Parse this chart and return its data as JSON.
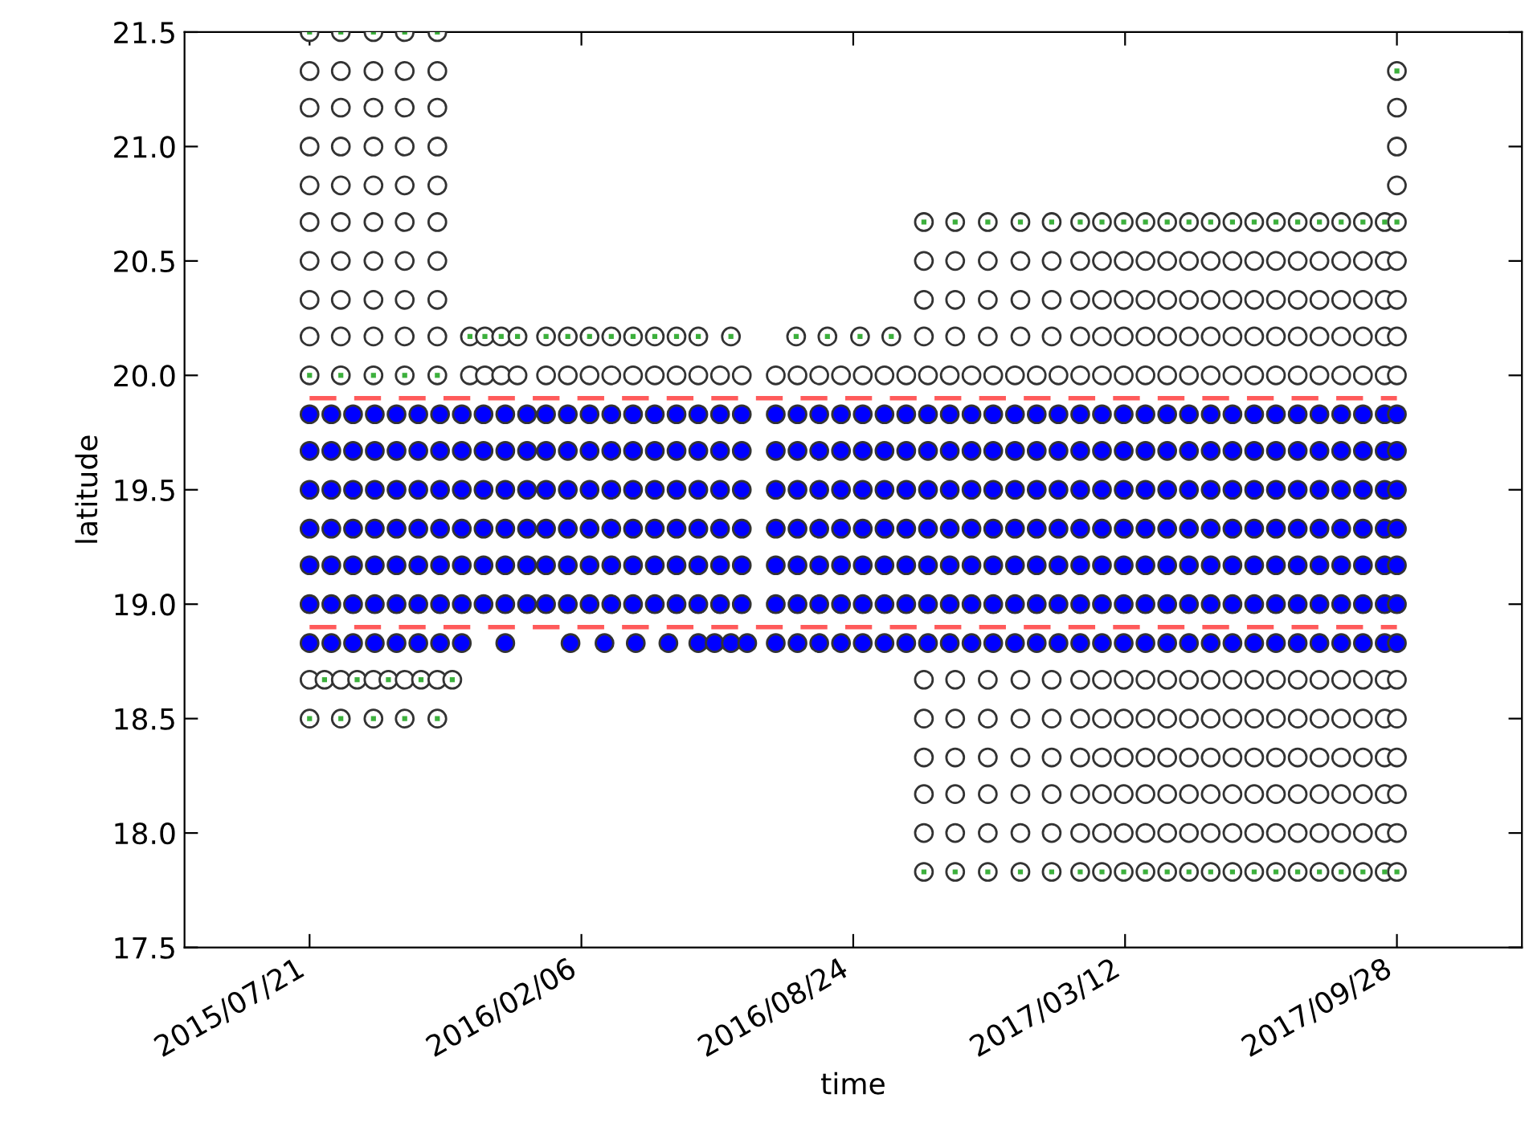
{
  "chart_data": {
    "type": "scatter",
    "xlabel": "time",
    "ylabel": "latitude",
    "xlim": [
      "2015-04-20",
      "2017-12-29"
    ],
    "ylim": [
      17.5,
      21.5
    ],
    "xticks": [
      {
        "value": "2015-07-21",
        "label": "2015/07/21"
      },
      {
        "value": "2016-02-06",
        "label": "2016/02/06"
      },
      {
        "value": "2016-08-24",
        "label": "2016/08/24"
      },
      {
        "value": "2017-03-12",
        "label": "2017/03/12"
      },
      {
        "value": "2017-09-28",
        "label": "2017/09/28"
      }
    ],
    "yticks": [
      17.5,
      {
        "value": 18,
        "label": "18.0"
      },
      18.5,
      {
        "value": 19,
        "label": "19.0"
      },
      19.5,
      {
        "value": 20,
        "label": "20.0"
      },
      20.5,
      {
        "value": 21,
        "label": "21.0"
      },
      21.5
    ],
    "grid": false,
    "line_style": "dashed",
    "series": [
      {
        "color": "#ffffff",
        "marker": "circle",
        "x": [
          "2015-07-21",
          "2015-08-13",
          "2015-09-06",
          "2015-09-29",
          "2015-10-23"
        ],
        "values": [
          21.5,
          21.5,
          21.5,
          21.5,
          21.5
        ]
      },
      {
        "color": "#ffffff",
        "marker": "circle",
        "x": [
          "2015-07-21",
          "2015-08-13",
          "2015-09-06",
          "2015-09-29",
          "2015-10-23",
          "2017-09-28"
        ],
        "values": [
          21.33,
          21.33,
          21.33,
          21.33,
          21.33,
          21.33
        ]
      },
      {
        "color": "#ffffff",
        "marker": "circle",
        "x": [
          "2015-07-21",
          "2015-08-13",
          "2015-09-06",
          "2015-09-29",
          "2015-10-23",
          "2017-09-28"
        ],
        "values": [
          21.17,
          21.17,
          21.17,
          21.17,
          21.17,
          21.17
        ]
      },
      {
        "color": "#ffffff",
        "marker": "circle",
        "x": [
          "2015-07-21",
          "2015-08-13",
          "2015-09-06",
          "2015-09-29",
          "2015-10-23",
          "2017-09-28"
        ],
        "values": [
          21.0,
          21.0,
          21.0,
          21.0,
          21.0,
          21.0
        ]
      },
      {
        "color": "#ffffff",
        "marker": "circle",
        "x": [
          "2015-07-21",
          "2015-08-13",
          "2015-09-06",
          "2015-09-29",
          "2015-10-23",
          "2017-09-28"
        ],
        "values": [
          20.83,
          20.83,
          20.83,
          20.83,
          20.83,
          20.83
        ]
      },
      {
        "color": "#ffffff",
        "marker": "circle",
        "x": [
          "2015-07-21",
          "2015-08-13",
          "2015-09-06",
          "2015-09-29",
          "2015-10-23",
          "2016-10-15",
          "2016-11-07",
          "2016-12-01",
          "2016-12-25",
          "2017-01-17",
          "2017-02-07",
          "2017-02-23",
          "2017-03-11",
          "2017-03-27",
          "2017-04-12",
          "2017-04-28",
          "2017-05-14",
          "2017-05-30",
          "2017-06-15",
          "2017-07-01",
          "2017-07-17",
          "2017-08-02",
          "2017-08-18",
          "2017-09-03",
          "2017-09-19",
          "2017-09-28"
        ],
        "values": [
          20.67,
          20.67,
          20.67,
          20.67,
          20.67,
          20.67,
          20.67,
          20.67,
          20.67,
          20.67,
          20.67,
          20.67,
          20.67,
          20.67,
          20.67,
          20.67,
          20.67,
          20.67,
          20.67,
          20.67,
          20.67,
          20.67,
          20.67,
          20.67,
          20.67,
          20.67
        ]
      },
      {
        "color": "#ffffff",
        "marker": "circle",
        "x": [
          "2015-07-21",
          "2015-08-13",
          "2015-09-06",
          "2015-09-29",
          "2015-10-23",
          "2016-10-15",
          "2016-11-07",
          "2016-12-01",
          "2016-12-25",
          "2017-01-17",
          "2017-02-07",
          "2017-02-23",
          "2017-03-11",
          "2017-03-27",
          "2017-04-12",
          "2017-04-28",
          "2017-05-14",
          "2017-05-30",
          "2017-06-15",
          "2017-07-01",
          "2017-07-17",
          "2017-08-02",
          "2017-08-18",
          "2017-09-03",
          "2017-09-19",
          "2017-09-28"
        ],
        "values": [
          20.5,
          20.5,
          20.5,
          20.5,
          20.5,
          20.5,
          20.5,
          20.5,
          20.5,
          20.5,
          20.5,
          20.5,
          20.5,
          20.5,
          20.5,
          20.5,
          20.5,
          20.5,
          20.5,
          20.5,
          20.5,
          20.5,
          20.5,
          20.5,
          20.5,
          20.5
        ]
      },
      {
        "color": "#ffffff",
        "marker": "circle",
        "x": [
          "2015-07-21",
          "2015-08-13",
          "2015-09-06",
          "2015-09-29",
          "2015-10-23",
          "2016-10-15",
          "2016-11-07",
          "2016-12-01",
          "2016-12-25",
          "2017-01-17",
          "2017-02-07",
          "2017-02-23",
          "2017-03-11",
          "2017-03-27",
          "2017-04-12",
          "2017-04-28",
          "2017-05-14",
          "2017-05-30",
          "2017-06-15",
          "2017-07-01",
          "2017-07-17",
          "2017-08-02",
          "2017-08-18",
          "2017-09-03",
          "2017-09-19",
          "2017-09-28"
        ],
        "values": [
          20.33,
          20.33,
          20.33,
          20.33,
          20.33,
          20.33,
          20.33,
          20.33,
          20.33,
          20.33,
          20.33,
          20.33,
          20.33,
          20.33,
          20.33,
          20.33,
          20.33,
          20.33,
          20.33,
          20.33,
          20.33,
          20.33,
          20.33,
          20.33,
          20.33,
          20.33
        ]
      },
      {
        "color": "#ffffff",
        "marker": "circle",
        "x": [
          "2015-07-21",
          "2015-08-13",
          "2015-09-06",
          "2015-09-29",
          "2015-10-23",
          "2015-11-16",
          "2015-11-27",
          "2015-12-09",
          "2015-12-21",
          "2016-01-11",
          "2016-01-27",
          "2016-02-12",
          "2016-02-28",
          "2016-03-15",
          "2016-03-31",
          "2016-04-16",
          "2016-05-02",
          "2016-05-26",
          "2016-07-13",
          "2016-08-05",
          "2016-08-29",
          "2016-09-21",
          "2016-10-15",
          "2016-11-07",
          "2016-12-01",
          "2016-12-25",
          "2017-01-17",
          "2017-02-07",
          "2017-02-23",
          "2017-03-11",
          "2017-03-27",
          "2017-04-12",
          "2017-04-28",
          "2017-05-14",
          "2017-05-30",
          "2017-06-15",
          "2017-07-01",
          "2017-07-17",
          "2017-08-02",
          "2017-08-18",
          "2017-09-03",
          "2017-09-19",
          "2017-09-28"
        ],
        "values": [
          20.17,
          20.17,
          20.17,
          20.17,
          20.17,
          20.17,
          20.17,
          20.17,
          20.17,
          20.17,
          20.17,
          20.17,
          20.17,
          20.17,
          20.17,
          20.17,
          20.17,
          20.17,
          20.17,
          20.17,
          20.17,
          20.17,
          20.17,
          20.17,
          20.17,
          20.17,
          20.17,
          20.17,
          20.17,
          20.17,
          20.17,
          20.17,
          20.17,
          20.17,
          20.17,
          20.17,
          20.17,
          20.17,
          20.17,
          20.17,
          20.17,
          20.17,
          20.17
        ]
      },
      {
        "color": "#ffffff",
        "marker": "circle",
        "x": [
          "2015-07-21",
          "2015-08-13",
          "2015-09-06",
          "2015-09-29",
          "2015-10-23",
          "2015-11-16",
          "2015-11-27",
          "2015-12-09",
          "2015-12-21",
          "2016-01-11",
          "2016-01-27",
          "2016-02-12",
          "2016-02-28",
          "2016-03-15",
          "2016-03-31",
          "2016-04-16",
          "2016-05-02",
          "2016-05-18",
          "2016-06-03",
          "2016-06-28",
          "2016-07-14",
          "2016-07-30",
          "2016-08-15",
          "2016-08-31",
          "2016-09-16",
          "2016-10-02",
          "2016-10-18",
          "2016-11-03",
          "2016-11-19",
          "2016-12-05",
          "2016-12-21",
          "2017-01-06",
          "2017-01-22",
          "2017-02-07",
          "2017-02-23",
          "2017-03-11",
          "2017-03-27",
          "2017-04-12",
          "2017-04-28",
          "2017-05-14",
          "2017-05-30",
          "2017-06-15",
          "2017-07-01",
          "2017-07-17",
          "2017-08-02",
          "2017-08-18",
          "2017-09-03",
          "2017-09-19",
          "2017-09-28"
        ],
        "values": [
          20.0,
          20.0,
          20.0,
          20.0,
          20.0,
          20.0,
          20.0,
          20.0,
          20.0,
          20.0,
          20.0,
          20.0,
          20.0,
          20.0,
          20.0,
          20.0,
          20.0,
          20.0,
          20.0,
          20.0,
          20.0,
          20.0,
          20.0,
          20.0,
          20.0,
          20.0,
          20.0,
          20.0,
          20.0,
          20.0,
          20.0,
          20.0,
          20.0,
          20.0,
          20.0,
          20.0,
          20.0,
          20.0,
          20.0,
          20.0,
          20.0,
          20.0,
          20.0,
          20.0,
          20.0,
          20.0,
          20.0,
          20.0,
          20.0
        ]
      },
      {
        "color": "#ffffff",
        "marker": "circle",
        "x": [
          "2015-07-21",
          "2015-08-01",
          "2015-08-13",
          "2015-08-25",
          "2015-09-06",
          "2015-09-17",
          "2015-09-29",
          "2015-10-11",
          "2015-10-23",
          "2015-11-03",
          "2016-10-15",
          "2016-11-07",
          "2016-12-01",
          "2016-12-25",
          "2017-01-17",
          "2017-02-07",
          "2017-02-23",
          "2017-03-11",
          "2017-03-27",
          "2017-04-12",
          "2017-04-28",
          "2017-05-14",
          "2017-05-30",
          "2017-06-15",
          "2017-07-01",
          "2017-07-17",
          "2017-08-02",
          "2017-08-18",
          "2017-09-03",
          "2017-09-19",
          "2017-09-28"
        ],
        "values": [
          18.67,
          18.67,
          18.67,
          18.67,
          18.67,
          18.67,
          18.67,
          18.67,
          18.67,
          18.67,
          18.67,
          18.67,
          18.67,
          18.67,
          18.67,
          18.67,
          18.67,
          18.67,
          18.67,
          18.67,
          18.67,
          18.67,
          18.67,
          18.67,
          18.67,
          18.67,
          18.67,
          18.67,
          18.67,
          18.67,
          18.67
        ]
      },
      {
        "color": "#ffffff",
        "marker": "circle",
        "x": [
          "2015-07-21",
          "2015-08-13",
          "2015-09-06",
          "2015-09-29",
          "2015-10-23",
          "2016-10-15",
          "2016-11-07",
          "2016-12-01",
          "2016-12-25",
          "2017-01-17",
          "2017-02-07",
          "2017-02-23",
          "2017-03-11",
          "2017-03-27",
          "2017-04-12",
          "2017-04-28",
          "2017-05-14",
          "2017-05-30",
          "2017-06-15",
          "2017-07-01",
          "2017-07-17",
          "2017-08-02",
          "2017-08-18",
          "2017-09-03",
          "2017-09-19",
          "2017-09-28"
        ],
        "values": [
          18.5,
          18.5,
          18.5,
          18.5,
          18.5,
          18.5,
          18.5,
          18.5,
          18.5,
          18.5,
          18.5,
          18.5,
          18.5,
          18.5,
          18.5,
          18.5,
          18.5,
          18.5,
          18.5,
          18.5,
          18.5,
          18.5,
          18.5,
          18.5,
          18.5,
          18.5
        ]
      },
      {
        "color": "#ffffff",
        "marker": "circle",
        "x": [
          "2016-10-15",
          "2016-11-07",
          "2016-12-01",
          "2016-12-25",
          "2017-01-17",
          "2017-02-07",
          "2017-02-23",
          "2017-03-11",
          "2017-03-27",
          "2017-04-12",
          "2017-04-28",
          "2017-05-14",
          "2017-05-30",
          "2017-06-15",
          "2017-07-01",
          "2017-07-17",
          "2017-08-02",
          "2017-08-18",
          "2017-09-03",
          "2017-09-19",
          "2017-09-28"
        ],
        "values": [
          18.33,
          18.33,
          18.33,
          18.33,
          18.33,
          18.33,
          18.33,
          18.33,
          18.33,
          18.33,
          18.33,
          18.33,
          18.33,
          18.33,
          18.33,
          18.33,
          18.33,
          18.33,
          18.33,
          18.33,
          18.33
        ]
      },
      {
        "color": "#ffffff",
        "marker": "circle",
        "x": [
          "2016-10-15",
          "2016-11-07",
          "2016-12-01",
          "2016-12-25",
          "2017-01-17",
          "2017-02-07",
          "2017-02-23",
          "2017-03-11",
          "2017-03-27",
          "2017-04-12",
          "2017-04-28",
          "2017-05-14",
          "2017-05-30",
          "2017-06-15",
          "2017-07-01",
          "2017-07-17",
          "2017-08-02",
          "2017-08-18",
          "2017-09-03",
          "2017-09-19",
          "2017-09-28"
        ],
        "values": [
          18.17,
          18.17,
          18.17,
          18.17,
          18.17,
          18.17,
          18.17,
          18.17,
          18.17,
          18.17,
          18.17,
          18.17,
          18.17,
          18.17,
          18.17,
          18.17,
          18.17,
          18.17,
          18.17,
          18.17,
          18.17
        ]
      },
      {
        "color": "#ffffff",
        "marker": "circle",
        "x": [
          "2016-10-15",
          "2016-11-07",
          "2016-12-01",
          "2016-12-25",
          "2017-01-17",
          "2017-02-07",
          "2017-02-23",
          "2017-03-11",
          "2017-03-27",
          "2017-04-12",
          "2017-04-28",
          "2017-05-14",
          "2017-05-30",
          "2017-06-15",
          "2017-07-01",
          "2017-07-17",
          "2017-08-02",
          "2017-08-18",
          "2017-09-03",
          "2017-09-19",
          "2017-09-28"
        ],
        "values": [
          18.0,
          18.0,
          18.0,
          18.0,
          18.0,
          18.0,
          18.0,
          18.0,
          18.0,
          18.0,
          18.0,
          18.0,
          18.0,
          18.0,
          18.0,
          18.0,
          18.0,
          18.0,
          18.0,
          18.0,
          18.0
        ]
      },
      {
        "color": "#ffffff",
        "marker": "circle",
        "x": [
          "2016-10-15",
          "2016-11-07",
          "2016-12-01",
          "2016-12-25",
          "2017-01-17",
          "2017-02-07",
          "2017-02-23",
          "2017-03-11",
          "2017-03-27",
          "2017-04-12",
          "2017-04-28",
          "2017-05-14",
          "2017-05-30",
          "2017-06-15",
          "2017-07-01",
          "2017-07-17",
          "2017-08-02",
          "2017-08-18",
          "2017-09-03",
          "2017-09-19",
          "2017-09-28"
        ],
        "values": [
          17.83,
          17.83,
          17.83,
          17.83,
          17.83,
          17.83,
          17.83,
          17.83,
          17.83,
          17.83,
          17.83,
          17.83,
          17.83,
          17.83,
          17.83,
          17.83,
          17.83,
          17.83,
          17.83,
          17.83,
          17.83
        ]
      },
      {
        "color": "#3cb03c",
        "marker": "square",
        "x": [
          "2015-07-21",
          "2015-08-13",
          "2015-09-06",
          "2015-09-29",
          "2015-10-23"
        ],
        "values": [
          21.5,
          21.5,
          21.5,
          21.5,
          21.5
        ]
      },
      {
        "color": "#3cb03c",
        "marker": "square",
        "x": [
          "2017-09-28"
        ],
        "values": [
          21.33
        ]
      },
      {
        "color": "#3cb03c",
        "marker": "square",
        "x": [
          "2016-10-15",
          "2016-11-07",
          "2016-12-01",
          "2016-12-25",
          "2017-01-17",
          "2017-02-07",
          "2017-02-23",
          "2017-03-11",
          "2017-03-27",
          "2017-04-12",
          "2017-04-28",
          "2017-05-14",
          "2017-05-30",
          "2017-06-15",
          "2017-07-01",
          "2017-07-17",
          "2017-08-02",
          "2017-08-18",
          "2017-09-03",
          "2017-09-19",
          "2017-09-28"
        ],
        "values": [
          20.67,
          20.67,
          20.67,
          20.67,
          20.67,
          20.67,
          20.67,
          20.67,
          20.67,
          20.67,
          20.67,
          20.67,
          20.67,
          20.67,
          20.67,
          20.67,
          20.67,
          20.67,
          20.67,
          20.67,
          20.67
        ]
      },
      {
        "color": "#3cb03c",
        "marker": "square",
        "x": [
          "2015-11-16",
          "2015-11-27",
          "2015-12-09",
          "2015-12-21",
          "2016-01-11",
          "2016-01-27",
          "2016-02-12",
          "2016-02-28",
          "2016-03-15",
          "2016-03-31",
          "2016-04-16",
          "2016-05-02",
          "2016-05-26",
          "2016-07-13",
          "2016-08-05",
          "2016-08-29",
          "2016-09-21"
        ],
        "values": [
          20.17,
          20.17,
          20.17,
          20.17,
          20.17,
          20.17,
          20.17,
          20.17,
          20.17,
          20.17,
          20.17,
          20.17,
          20.17,
          20.17,
          20.17,
          20.17,
          20.17
        ]
      },
      {
        "color": "#3cb03c",
        "marker": "square",
        "x": [
          "2015-07-21",
          "2015-08-13",
          "2015-09-06",
          "2015-09-29",
          "2015-10-23"
        ],
        "values": [
          20.0,
          20.0,
          20.0,
          20.0,
          20.0
        ]
      },
      {
        "color": "#3cb03c",
        "marker": "square",
        "x": [
          "2015-08-01",
          "2015-08-25",
          "2015-09-17",
          "2015-10-11",
          "2015-11-03"
        ],
        "values": [
          18.67,
          18.67,
          18.67,
          18.67,
          18.67
        ]
      },
      {
        "color": "#3cb03c",
        "marker": "square",
        "x": [
          "2015-07-21",
          "2015-08-13",
          "2015-09-06",
          "2015-09-29",
          "2015-10-23"
        ],
        "values": [
          18.5,
          18.5,
          18.5,
          18.5,
          18.5
        ]
      },
      {
        "color": "#3cb03c",
        "marker": "square",
        "x": [
          "2016-10-15",
          "2016-11-07",
          "2016-12-01",
          "2016-12-25",
          "2017-01-17",
          "2017-02-07",
          "2017-02-23",
          "2017-03-11",
          "2017-03-27",
          "2017-04-12",
          "2017-04-28",
          "2017-05-14",
          "2017-05-30",
          "2017-06-15",
          "2017-07-01",
          "2017-07-17",
          "2017-08-02",
          "2017-08-18",
          "2017-09-03",
          "2017-09-19",
          "2017-09-28"
        ],
        "values": [
          17.83,
          17.83,
          17.83,
          17.83,
          17.83,
          17.83,
          17.83,
          17.83,
          17.83,
          17.83,
          17.83,
          17.83,
          17.83,
          17.83,
          17.83,
          17.83,
          17.83,
          17.83,
          17.83,
          17.83,
          17.83
        ]
      },
      {
        "color": "#0000ff",
        "marker": "circle",
        "x": [
          "2015-07-21",
          "2015-08-06",
          "2015-08-22",
          "2015-09-07",
          "2015-09-23",
          "2015-10-09",
          "2015-10-25",
          "2015-11-10",
          "2015-11-26",
          "2015-12-12",
          "2015-12-28",
          "2016-01-11",
          "2016-01-27",
          "2016-02-12",
          "2016-02-28",
          "2016-03-15",
          "2016-03-31",
          "2016-04-16",
          "2016-05-02",
          "2016-05-18",
          "2016-06-03",
          "2016-06-28",
          "2016-07-14",
          "2016-07-30",
          "2016-08-15",
          "2016-08-31",
          "2016-09-16",
          "2016-10-02",
          "2016-10-18",
          "2016-11-03",
          "2016-11-19",
          "2016-12-05",
          "2016-12-21",
          "2017-01-06",
          "2017-01-22",
          "2017-02-07",
          "2017-02-23",
          "2017-03-11",
          "2017-03-27",
          "2017-04-12",
          "2017-04-28",
          "2017-05-14",
          "2017-05-30",
          "2017-06-15",
          "2017-07-01",
          "2017-07-17",
          "2017-08-02",
          "2017-08-18",
          "2017-09-03",
          "2017-09-19",
          "2017-09-28"
        ],
        "values": [
          19.83,
          19.83,
          19.83,
          19.83,
          19.83,
          19.83,
          19.83,
          19.83,
          19.83,
          19.83,
          19.83,
          19.83,
          19.83,
          19.83,
          19.83,
          19.83,
          19.83,
          19.83,
          19.83,
          19.83,
          19.83,
          19.83,
          19.83,
          19.83,
          19.83,
          19.83,
          19.83,
          19.83,
          19.83,
          19.83,
          19.83,
          19.83,
          19.83,
          19.83,
          19.83,
          19.83,
          19.83,
          19.83,
          19.83,
          19.83,
          19.83,
          19.83,
          19.83,
          19.83,
          19.83,
          19.83,
          19.83,
          19.83,
          19.83,
          19.83,
          19.83
        ]
      },
      {
        "color": "#0000ff",
        "marker": "circle",
        "x": [
          "2015-07-21",
          "2015-08-06",
          "2015-08-22",
          "2015-09-07",
          "2015-09-23",
          "2015-10-09",
          "2015-10-25",
          "2015-11-10",
          "2015-11-26",
          "2015-12-12",
          "2015-12-28",
          "2016-01-11",
          "2016-01-27",
          "2016-02-12",
          "2016-02-28",
          "2016-03-15",
          "2016-03-31",
          "2016-04-16",
          "2016-05-02",
          "2016-05-18",
          "2016-06-03",
          "2016-06-28",
          "2016-07-14",
          "2016-07-30",
          "2016-08-15",
          "2016-08-31",
          "2016-09-16",
          "2016-10-02",
          "2016-10-18",
          "2016-11-03",
          "2016-11-19",
          "2016-12-05",
          "2016-12-21",
          "2017-01-06",
          "2017-01-22",
          "2017-02-07",
          "2017-02-23",
          "2017-03-11",
          "2017-03-27",
          "2017-04-12",
          "2017-04-28",
          "2017-05-14",
          "2017-05-30",
          "2017-06-15",
          "2017-07-01",
          "2017-07-17",
          "2017-08-02",
          "2017-08-18",
          "2017-09-03",
          "2017-09-19",
          "2017-09-28"
        ],
        "values": [
          19.67,
          19.67,
          19.67,
          19.67,
          19.67,
          19.67,
          19.67,
          19.67,
          19.67,
          19.67,
          19.67,
          19.67,
          19.67,
          19.67,
          19.67,
          19.67,
          19.67,
          19.67,
          19.67,
          19.67,
          19.67,
          19.67,
          19.67,
          19.67,
          19.67,
          19.67,
          19.67,
          19.67,
          19.67,
          19.67,
          19.67,
          19.67,
          19.67,
          19.67,
          19.67,
          19.67,
          19.67,
          19.67,
          19.67,
          19.67,
          19.67,
          19.67,
          19.67,
          19.67,
          19.67,
          19.67,
          19.67,
          19.67,
          19.67,
          19.67,
          19.67
        ]
      },
      {
        "color": "#0000ff",
        "marker": "circle",
        "x": [
          "2015-07-21",
          "2015-08-06",
          "2015-08-22",
          "2015-09-07",
          "2015-09-23",
          "2015-10-09",
          "2015-10-25",
          "2015-11-10",
          "2015-11-26",
          "2015-12-12",
          "2015-12-28",
          "2016-01-11",
          "2016-01-27",
          "2016-02-12",
          "2016-02-28",
          "2016-03-15",
          "2016-03-31",
          "2016-04-16",
          "2016-05-02",
          "2016-05-18",
          "2016-06-03",
          "2016-06-28",
          "2016-07-14",
          "2016-07-30",
          "2016-08-15",
          "2016-08-31",
          "2016-09-16",
          "2016-10-02",
          "2016-10-18",
          "2016-11-03",
          "2016-11-19",
          "2016-12-05",
          "2016-12-21",
          "2017-01-06",
          "2017-01-22",
          "2017-02-07",
          "2017-02-23",
          "2017-03-11",
          "2017-03-27",
          "2017-04-12",
          "2017-04-28",
          "2017-05-14",
          "2017-05-30",
          "2017-06-15",
          "2017-07-01",
          "2017-07-17",
          "2017-08-02",
          "2017-08-18",
          "2017-09-03",
          "2017-09-19",
          "2017-09-28"
        ],
        "values": [
          19.5,
          19.5,
          19.5,
          19.5,
          19.5,
          19.5,
          19.5,
          19.5,
          19.5,
          19.5,
          19.5,
          19.5,
          19.5,
          19.5,
          19.5,
          19.5,
          19.5,
          19.5,
          19.5,
          19.5,
          19.5,
          19.5,
          19.5,
          19.5,
          19.5,
          19.5,
          19.5,
          19.5,
          19.5,
          19.5,
          19.5,
          19.5,
          19.5,
          19.5,
          19.5,
          19.5,
          19.5,
          19.5,
          19.5,
          19.5,
          19.5,
          19.5,
          19.5,
          19.5,
          19.5,
          19.5,
          19.5,
          19.5,
          19.5,
          19.5,
          19.5
        ]
      },
      {
        "color": "#0000ff",
        "marker": "circle",
        "x": [
          "2015-07-21",
          "2015-08-06",
          "2015-08-22",
          "2015-09-07",
          "2015-09-23",
          "2015-10-09",
          "2015-10-25",
          "2015-11-10",
          "2015-11-26",
          "2015-12-12",
          "2015-12-28",
          "2016-01-11",
          "2016-01-27",
          "2016-02-12",
          "2016-02-28",
          "2016-03-15",
          "2016-03-31",
          "2016-04-16",
          "2016-05-02",
          "2016-05-18",
          "2016-06-03",
          "2016-06-28",
          "2016-07-14",
          "2016-07-30",
          "2016-08-15",
          "2016-08-31",
          "2016-09-16",
          "2016-10-02",
          "2016-10-18",
          "2016-11-03",
          "2016-11-19",
          "2016-12-05",
          "2016-12-21",
          "2017-01-06",
          "2017-01-22",
          "2017-02-07",
          "2017-02-23",
          "2017-03-11",
          "2017-03-27",
          "2017-04-12",
          "2017-04-28",
          "2017-05-14",
          "2017-05-30",
          "2017-06-15",
          "2017-07-01",
          "2017-07-17",
          "2017-08-02",
          "2017-08-18",
          "2017-09-03",
          "2017-09-19",
          "2017-09-28"
        ],
        "values": [
          19.33,
          19.33,
          19.33,
          19.33,
          19.33,
          19.33,
          19.33,
          19.33,
          19.33,
          19.33,
          19.33,
          19.33,
          19.33,
          19.33,
          19.33,
          19.33,
          19.33,
          19.33,
          19.33,
          19.33,
          19.33,
          19.33,
          19.33,
          19.33,
          19.33,
          19.33,
          19.33,
          19.33,
          19.33,
          19.33,
          19.33,
          19.33,
          19.33,
          19.33,
          19.33,
          19.33,
          19.33,
          19.33,
          19.33,
          19.33,
          19.33,
          19.33,
          19.33,
          19.33,
          19.33,
          19.33,
          19.33,
          19.33,
          19.33,
          19.33,
          19.33
        ]
      },
      {
        "color": "#0000ff",
        "marker": "circle",
        "x": [
          "2015-07-21",
          "2015-08-06",
          "2015-08-22",
          "2015-09-07",
          "2015-09-23",
          "2015-10-09",
          "2015-10-25",
          "2015-11-10",
          "2015-11-26",
          "2015-12-12",
          "2015-12-28",
          "2016-01-11",
          "2016-01-27",
          "2016-02-12",
          "2016-02-28",
          "2016-03-15",
          "2016-03-31",
          "2016-04-16",
          "2016-05-02",
          "2016-05-18",
          "2016-06-03",
          "2016-06-28",
          "2016-07-14",
          "2016-07-30",
          "2016-08-15",
          "2016-08-31",
          "2016-09-16",
          "2016-10-02",
          "2016-10-18",
          "2016-11-03",
          "2016-11-19",
          "2016-12-05",
          "2016-12-21",
          "2017-01-06",
          "2017-01-22",
          "2017-02-07",
          "2017-02-23",
          "2017-03-11",
          "2017-03-27",
          "2017-04-12",
          "2017-04-28",
          "2017-05-14",
          "2017-05-30",
          "2017-06-15",
          "2017-07-01",
          "2017-07-17",
          "2017-08-02",
          "2017-08-18",
          "2017-09-03",
          "2017-09-19",
          "2017-09-28"
        ],
        "values": [
          19.17,
          19.17,
          19.17,
          19.17,
          19.17,
          19.17,
          19.17,
          19.17,
          19.17,
          19.17,
          19.17,
          19.17,
          19.17,
          19.17,
          19.17,
          19.17,
          19.17,
          19.17,
          19.17,
          19.17,
          19.17,
          19.17,
          19.17,
          19.17,
          19.17,
          19.17,
          19.17,
          19.17,
          19.17,
          19.17,
          19.17,
          19.17,
          19.17,
          19.17,
          19.17,
          19.17,
          19.17,
          19.17,
          19.17,
          19.17,
          19.17,
          19.17,
          19.17,
          19.17,
          19.17,
          19.17,
          19.17,
          19.17,
          19.17,
          19.17,
          19.17
        ]
      },
      {
        "color": "#0000ff",
        "marker": "circle",
        "x": [
          "2015-07-21",
          "2015-08-06",
          "2015-08-22",
          "2015-09-07",
          "2015-09-23",
          "2015-10-09",
          "2015-10-25",
          "2015-11-10",
          "2015-11-26",
          "2015-12-12",
          "2015-12-28",
          "2016-01-11",
          "2016-01-27",
          "2016-02-12",
          "2016-02-28",
          "2016-03-15",
          "2016-03-31",
          "2016-04-16",
          "2016-05-02",
          "2016-05-18",
          "2016-06-03",
          "2016-06-28",
          "2016-07-14",
          "2016-07-30",
          "2016-08-15",
          "2016-08-31",
          "2016-09-16",
          "2016-10-02",
          "2016-10-18",
          "2016-11-03",
          "2016-11-19",
          "2016-12-05",
          "2016-12-21",
          "2017-01-06",
          "2017-01-22",
          "2017-02-07",
          "2017-02-23",
          "2017-03-11",
          "2017-03-27",
          "2017-04-12",
          "2017-04-28",
          "2017-05-14",
          "2017-05-30",
          "2017-06-15",
          "2017-07-01",
          "2017-07-17",
          "2017-08-02",
          "2017-08-18",
          "2017-09-03",
          "2017-09-19",
          "2017-09-28"
        ],
        "values": [
          19.0,
          19.0,
          19.0,
          19.0,
          19.0,
          19.0,
          19.0,
          19.0,
          19.0,
          19.0,
          19.0,
          19.0,
          19.0,
          19.0,
          19.0,
          19.0,
          19.0,
          19.0,
          19.0,
          19.0,
          19.0,
          19.0,
          19.0,
          19.0,
          19.0,
          19.0,
          19.0,
          19.0,
          19.0,
          19.0,
          19.0,
          19.0,
          19.0,
          19.0,
          19.0,
          19.0,
          19.0,
          19.0,
          19.0,
          19.0,
          19.0,
          19.0,
          19.0,
          19.0,
          19.0,
          19.0,
          19.0,
          19.0,
          19.0,
          19.0,
          19.0
        ]
      },
      {
        "color": "#0000ff",
        "marker": "circle",
        "x": [
          "2015-07-21",
          "2015-08-06",
          "2015-08-22",
          "2015-09-07",
          "2015-09-23",
          "2015-10-09",
          "2015-10-25",
          "2015-11-10",
          "2015-12-12",
          "2016-01-29",
          "2016-02-23",
          "2016-03-17",
          "2016-04-10",
          "2016-05-02",
          "2016-05-14",
          "2016-05-26",
          "2016-06-07",
          "2016-06-28",
          "2016-07-14",
          "2016-07-30",
          "2016-08-15",
          "2016-08-31",
          "2016-09-16",
          "2016-10-02",
          "2016-10-18",
          "2016-11-03",
          "2016-11-19",
          "2016-12-05",
          "2016-12-21",
          "2017-01-06",
          "2017-01-22",
          "2017-02-07",
          "2017-02-23",
          "2017-03-11",
          "2017-03-27",
          "2017-04-12",
          "2017-04-28",
          "2017-05-14",
          "2017-05-30",
          "2017-06-15",
          "2017-07-01",
          "2017-07-17",
          "2017-08-02",
          "2017-08-18",
          "2017-09-03",
          "2017-09-19",
          "2017-09-28"
        ],
        "values": [
          18.83,
          18.83,
          18.83,
          18.83,
          18.83,
          18.83,
          18.83,
          18.83,
          18.83,
          18.83,
          18.83,
          18.83,
          18.83,
          18.83,
          18.83,
          18.83,
          18.83,
          18.83,
          18.83,
          18.83,
          18.83,
          18.83,
          18.83,
          18.83,
          18.83,
          18.83,
          18.83,
          18.83,
          18.83,
          18.83,
          18.83,
          18.83,
          18.83,
          18.83,
          18.83,
          18.83,
          18.83,
          18.83,
          18.83,
          18.83,
          18.83,
          18.83,
          18.83,
          18.83,
          18.83,
          18.83,
          18.83
        ]
      },
      {
        "type": "line",
        "color": "#ff5a5a",
        "x": [
          "2015-07-21",
          "2017-09-28"
        ],
        "values": [
          19.9,
          19.9
        ]
      },
      {
        "type": "line",
        "color": "#ff5a5a",
        "x": [
          "2015-07-21",
          "2017-09-28"
        ],
        "values": [
          18.9,
          18.9
        ]
      }
    ]
  }
}
